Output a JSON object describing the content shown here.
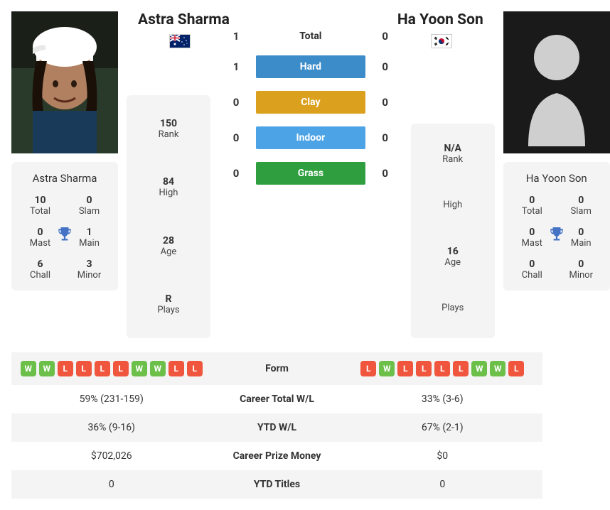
{
  "colors": {
    "win_badge": "#6cc04a",
    "loss_badge": "#f0563d",
    "hard": "#3c8cc9",
    "clay": "#dba11e",
    "indoor": "#4ca3e5",
    "grass": "#2e9e3f",
    "trophy": "#4472c4",
    "card_bg": "#f4f4f4"
  },
  "player1": {
    "name": "Astra Sharma",
    "flag": "au",
    "card": {
      "total": "10",
      "slam": "0",
      "mast": "0",
      "main": "1",
      "chall": "6",
      "minor": "3"
    },
    "stats": {
      "rank": "150",
      "high": "84",
      "age": "28",
      "plays": "R"
    }
  },
  "player2": {
    "name": "Ha Yoon Son",
    "flag": "kr",
    "card": {
      "total": "0",
      "slam": "0",
      "mast": "0",
      "main": "0",
      "chall": "0",
      "minor": "0"
    },
    "stats": {
      "rank": "N/A",
      "high": "",
      "age": "16",
      "plays": ""
    }
  },
  "h2h": {
    "total": {
      "p1": "1",
      "p2": "0",
      "label": "Total"
    },
    "surfaces": [
      {
        "p1": "1",
        "p2": "0",
        "label": "Hard",
        "color": "#3c8cc9"
      },
      {
        "p1": "0",
        "p2": "0",
        "label": "Clay",
        "color": "#dba11e"
      },
      {
        "p1": "0",
        "p2": "0",
        "label": "Indoor",
        "color": "#4ca3e5"
      },
      {
        "p1": "0",
        "p2": "0",
        "label": "Grass",
        "color": "#2e9e3f"
      }
    ]
  },
  "labels": {
    "total": "Total",
    "slam": "Slam",
    "mast": "Mast",
    "main": "Main",
    "chall": "Chall",
    "minor": "Minor",
    "rank": "Rank",
    "high": "High",
    "age": "Age",
    "plays": "Plays",
    "form": "Form",
    "career_wl": "Career Total W/L",
    "ytd_wl": "YTD W/L",
    "prize": "Career Prize Money",
    "ytd_titles": "YTD Titles"
  },
  "form": {
    "p1": [
      "W",
      "W",
      "L",
      "L",
      "L",
      "L",
      "W",
      "W",
      "L",
      "L"
    ],
    "p2": [
      "L",
      "W",
      "L",
      "L",
      "L",
      "L",
      "W",
      "W",
      "L"
    ]
  },
  "table": {
    "career_wl": {
      "p1": "59% (231-159)",
      "p2": "33% (3-6)"
    },
    "ytd_wl": {
      "p1": "36% (9-16)",
      "p2": "67% (2-1)"
    },
    "prize": {
      "p1": "$702,026",
      "p2": "$0"
    },
    "ytd_titles": {
      "p1": "0",
      "p2": "0"
    }
  }
}
